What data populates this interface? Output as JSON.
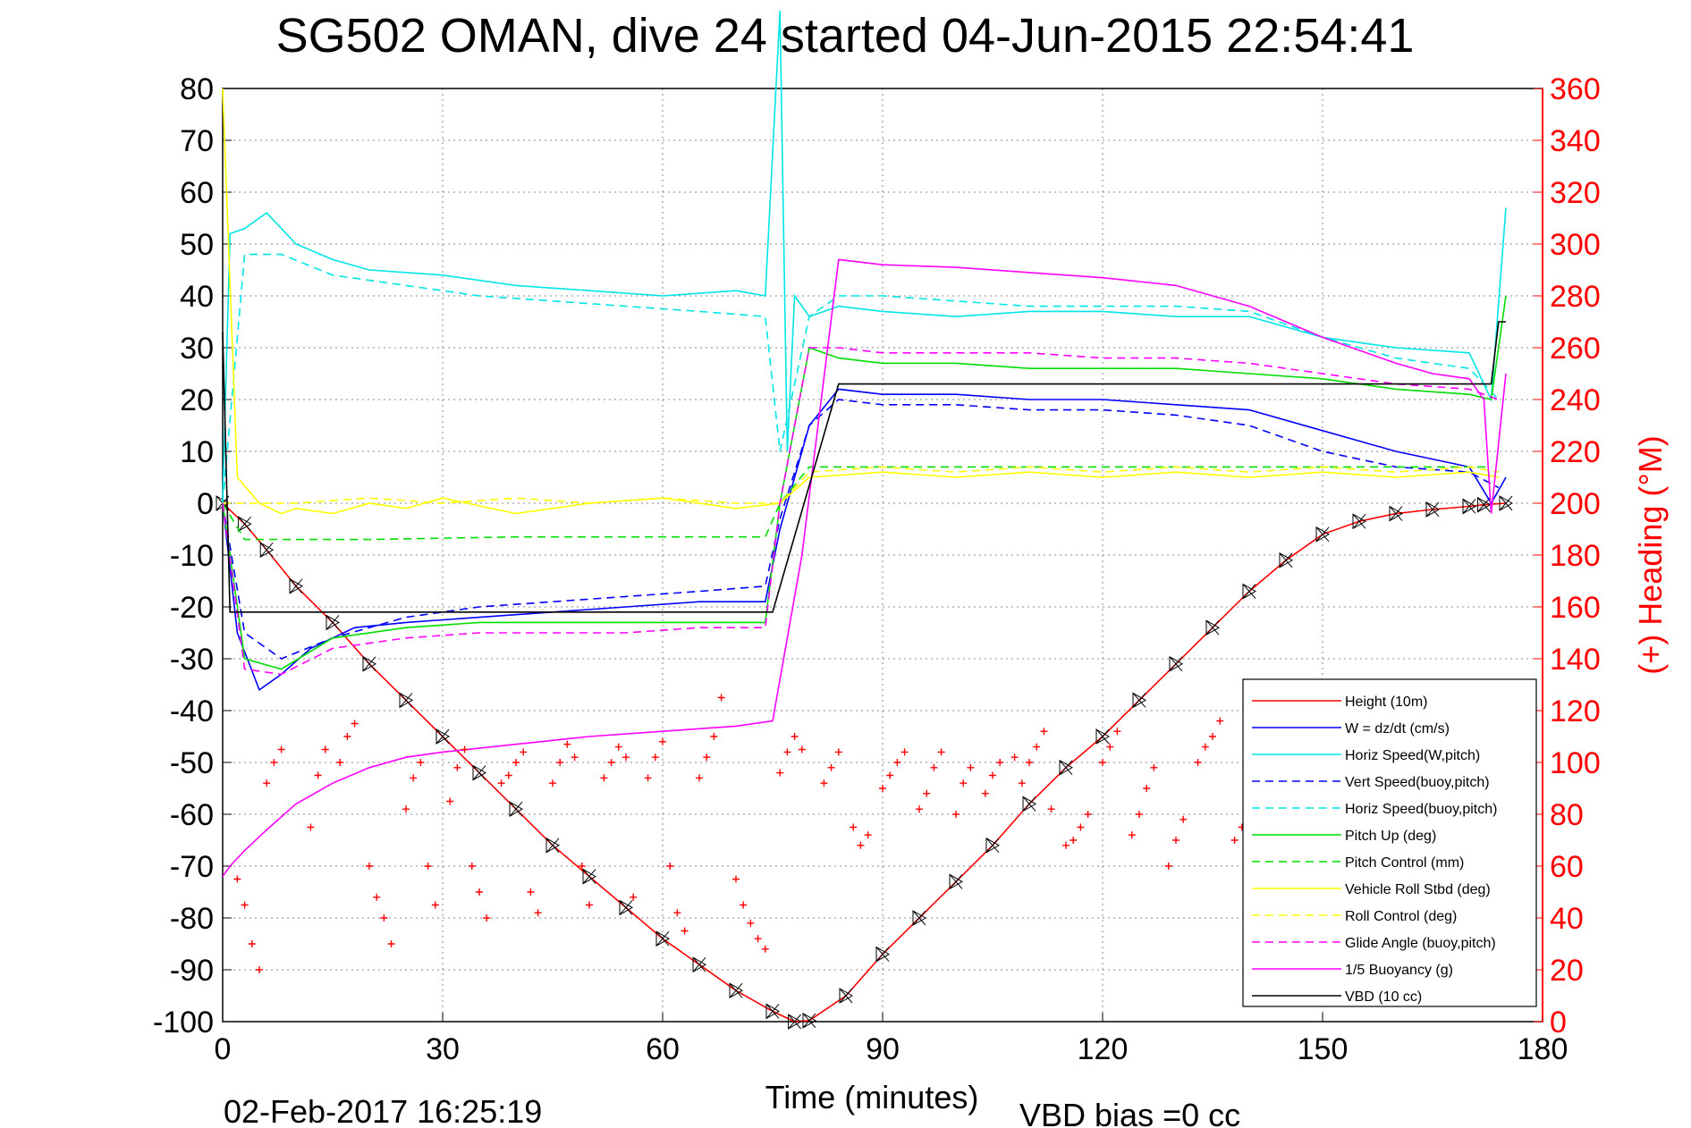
{
  "chart_data": {
    "type": "line",
    "title": "SG502 OMAN, dive 24 started 04-Jun-2015 22:54:41",
    "xlabel": "Time (minutes)",
    "ylabel": "",
    "y2label": "(+) Heading (°M)",
    "footer_left": "02-Feb-2017 16:25:19",
    "footer_right": "VBD bias =0 cc",
    "xlim": [
      0,
      180
    ],
    "ylim": [
      -100,
      80
    ],
    "y2lim": [
      0,
      360
    ],
    "xticks": [
      0,
      30,
      60,
      90,
      120,
      150,
      180
    ],
    "yticks": [
      -100,
      -90,
      -80,
      -70,
      -60,
      -50,
      -40,
      -30,
      -20,
      -10,
      0,
      10,
      20,
      30,
      40,
      50,
      60,
      70,
      80
    ],
    "y2ticks": [
      0,
      20,
      40,
      60,
      80,
      100,
      120,
      140,
      160,
      180,
      200,
      220,
      240,
      260,
      280,
      300,
      320,
      340,
      360
    ],
    "grid": true,
    "legend_position": "bottom-right",
    "series": [
      {
        "name": "Height (10m)",
        "color": "#ff0000",
        "dash": "solid",
        "x": [
          0,
          3,
          6,
          10,
          15,
          20,
          25,
          30,
          35,
          40,
          45,
          50,
          55,
          60,
          65,
          70,
          75,
          78,
          80,
          85,
          90,
          95,
          100,
          105,
          110,
          115,
          120,
          125,
          130,
          135,
          140,
          145,
          150,
          155,
          160,
          165,
          170,
          172,
          175
        ],
        "y": [
          0,
          -4,
          -9,
          -16,
          -23,
          -31,
          -38,
          -45,
          -52,
          -59,
          -66,
          -72,
          -78,
          -84,
          -89,
          -94,
          -98,
          -100,
          -99.8,
          -95,
          -87,
          -80,
          -73,
          -66,
          -58,
          -51,
          -45,
          -38,
          -31,
          -24,
          -17,
          -11,
          -6,
          -3.5,
          -2,
          -1.2,
          -0.6,
          -0.3,
          0
        ]
      },
      {
        "name": "W = dz/dt (cm/s)",
        "color": "#0000ff",
        "dash": "solid",
        "x": [
          0,
          2,
          5,
          8,
          12,
          18,
          25,
          35,
          45,
          55,
          65,
          74,
          76,
          80,
          84,
          90,
          100,
          110,
          120,
          130,
          140,
          150,
          160,
          170,
          173,
          175
        ],
        "y": [
          0,
          -25,
          -36,
          -33,
          -28,
          -24,
          -23,
          -22,
          -21,
          -20,
          -19,
          -19,
          -5,
          15,
          22,
          21,
          21,
          20,
          20,
          19,
          18,
          14,
          10,
          7,
          0,
          5
        ]
      },
      {
        "name": "Horiz Speed(W,pitch)",
        "color": "#00e5e5",
        "dash": "solid",
        "x": [
          0,
          1,
          3,
          6,
          10,
          15,
          20,
          30,
          40,
          50,
          60,
          70,
          74,
          76,
          77,
          78,
          80,
          84,
          90,
          100,
          110,
          120,
          130,
          140,
          150,
          160,
          170,
          173,
          175
        ],
        "y": [
          0,
          52,
          53,
          56,
          50,
          47,
          45,
          44,
          42,
          41,
          40,
          41,
          40,
          95,
          10,
          40,
          36,
          38,
          37,
          36,
          37,
          37,
          36,
          36,
          32,
          30,
          29,
          20,
          57
        ]
      },
      {
        "name": "Vert Speed(buoy,pitch)",
        "color": "#0000ff",
        "dash": "dashed",
        "x": [
          0,
          3,
          8,
          15,
          25,
          35,
          45,
          55,
          65,
          74,
          76,
          80,
          84,
          90,
          100,
          110,
          120,
          130,
          140,
          150,
          160,
          170,
          174
        ],
        "y": [
          0,
          -25,
          -30,
          -26,
          -22,
          -20,
          -19,
          -18,
          -17,
          -16,
          -3,
          15,
          20,
          19,
          19,
          18,
          18,
          17,
          15,
          10,
          7,
          6,
          3
        ]
      },
      {
        "name": "Horiz Speed(buoy,pitch)",
        "color": "#00e5e5",
        "dash": "dashed",
        "x": [
          0,
          3,
          8,
          15,
          25,
          35,
          45,
          55,
          65,
          74,
          76,
          80,
          84,
          90,
          100,
          110,
          120,
          130,
          140,
          150,
          160,
          170,
          174
        ],
        "y": [
          0,
          48,
          48,
          44,
          42,
          40,
          39,
          38,
          37,
          36,
          10,
          36,
          40,
          40,
          39,
          38,
          38,
          38,
          37,
          32,
          28,
          26,
          20
        ]
      },
      {
        "name": "Pitch Up (deg)",
        "color": "#00dd00",
        "dash": "solid",
        "x": [
          0,
          3,
          8,
          15,
          25,
          35,
          45,
          55,
          65,
          74,
          76,
          80,
          84,
          90,
          100,
          110,
          120,
          130,
          140,
          150,
          160,
          170,
          173,
          175
        ],
        "y": [
          0,
          -30,
          -32,
          -26,
          -24,
          -23,
          -23,
          -23,
          -23,
          -23,
          0,
          30,
          28,
          27,
          27,
          26,
          26,
          26,
          25,
          24,
          22,
          21,
          20,
          40
        ]
      },
      {
        "name": "Pitch Control (mm)",
        "color": "#00dd00",
        "dash": "dashed",
        "x": [
          0,
          3,
          20,
          40,
          60,
          74,
          76,
          80,
          100,
          120,
          140,
          160,
          173
        ],
        "y": [
          0,
          -7,
          -7,
          -6.5,
          -6.5,
          -6.5,
          0,
          7,
          7,
          7,
          7,
          7,
          7
        ]
      },
      {
        "name": "Vehicle Roll Stbd (deg)",
        "color": "#ffff00",
        "dash": "solid",
        "x": [
          0,
          2,
          5,
          8,
          10,
          15,
          20,
          25,
          30,
          40,
          50,
          60,
          70,
          76,
          80,
          90,
          100,
          110,
          120,
          130,
          140,
          150,
          160,
          170,
          174
        ],
        "y": [
          80,
          5,
          0,
          -2,
          -1,
          -2,
          0,
          -1,
          1,
          -2,
          0,
          1,
          -1,
          0,
          5,
          6,
          5,
          6,
          5,
          6,
          5,
          6,
          5,
          6,
          5
        ]
      },
      {
        "name": "Roll Control (deg)",
        "color": "#ffff00",
        "dash": "dashed",
        "x": [
          0,
          5,
          10,
          20,
          30,
          40,
          50,
          60,
          70,
          76,
          80,
          90,
          100,
          110,
          120,
          130,
          140,
          150,
          160,
          170,
          174
        ],
        "y": [
          0,
          0,
          0,
          1,
          0,
          1,
          0,
          1,
          0,
          0,
          6,
          7,
          6,
          7,
          6,
          7,
          6,
          7,
          6,
          7,
          6
        ]
      },
      {
        "name": "Glide Angle (buoy,pitch)",
        "color": "#ff00ff",
        "dash": "dashed",
        "x": [
          0,
          3,
          8,
          15,
          25,
          35,
          45,
          55,
          65,
          74,
          76,
          80,
          84,
          90,
          100,
          110,
          120,
          130,
          140,
          150,
          160,
          170,
          174
        ],
        "y": [
          0,
          -32,
          -33,
          -28,
          -26,
          -25,
          -25,
          -25,
          -24,
          -24,
          0,
          30,
          30,
          29,
          29,
          29,
          28,
          28,
          27,
          25,
          23,
          22,
          20
        ]
      },
      {
        "name": "1/5 Buoyancy (g)",
        "color": "#ff00ff",
        "dash": "solid",
        "x": [
          0,
          1,
          3,
          6,
          10,
          15,
          20,
          25,
          30,
          40,
          50,
          60,
          70,
          75,
          79,
          84,
          90,
          100,
          110,
          120,
          130,
          140,
          150,
          160,
          165,
          170,
          172,
          173,
          175
        ],
        "y": [
          -72,
          -70,
          -67,
          -63,
          -58,
          -54,
          -51,
          -49,
          -48,
          -46.5,
          -45,
          -44,
          -43,
          -42,
          -10,
          47,
          46,
          45.5,
          44.5,
          43.5,
          42,
          38,
          32,
          27,
          25,
          24,
          20,
          -2,
          25
        ]
      },
      {
        "name": "VBD (10 cc)",
        "color": "#000000",
        "dash": "solid",
        "x": [
          0,
          1,
          1.5,
          75,
          84,
          173,
          174,
          175
        ],
        "y": [
          33,
          -21,
          -21,
          -21,
          23,
          23,
          35,
          35
        ]
      }
    ],
    "heading": {
      "name": "(+) Heading (°M)",
      "color": "#ff0000",
      "marker": "+",
      "axis": "right",
      "x": [
        2,
        3,
        4,
        5,
        6,
        7,
        8,
        12,
        13,
        14,
        16,
        17,
        18,
        20,
        21,
        22,
        23,
        25,
        26,
        27,
        28,
        29,
        31,
        32,
        33,
        34,
        35,
        36,
        38,
        39,
        40,
        41,
        42,
        43,
        45,
        46,
        47,
        48,
        49,
        50,
        52,
        53,
        54,
        55,
        56,
        58,
        59,
        60,
        61,
        62,
        63,
        65,
        66,
        67,
        68,
        70,
        71,
        72,
        73,
        74,
        76,
        77,
        78,
        79,
        82,
        83,
        84,
        86,
        87,
        88,
        90,
        91,
        92,
        93,
        95,
        96,
        97,
        98,
        100,
        101,
        102,
        104,
        105,
        106,
        108,
        109,
        110,
        111,
        112,
        113,
        115,
        116,
        117,
        118,
        120,
        121,
        122,
        124,
        125,
        126,
        127,
        129,
        130,
        131,
        133,
        134,
        135,
        136,
        138,
        139,
        140,
        141,
        143,
        144,
        145,
        146
      ],
      "y": [
        55,
        45,
        30,
        20,
        92,
        100,
        105,
        75,
        95,
        105,
        100,
        110,
        115,
        60,
        48,
        40,
        30,
        82,
        94,
        100,
        60,
        45,
        85,
        98,
        105,
        60,
        50,
        40,
        92,
        95,
        100,
        104,
        50,
        42,
        92,
        100,
        107,
        102,
        60,
        45,
        94,
        100,
        106,
        102,
        48,
        94,
        102,
        108,
        60,
        42,
        35,
        94,
        102,
        110,
        125,
        55,
        45,
        38,
        32,
        28,
        96,
        104,
        110,
        105,
        92,
        98,
        104,
        75,
        68,
        72,
        90,
        95,
        100,
        104,
        82,
        88,
        98,
        104,
        80,
        92,
        98,
        88,
        95,
        100,
        102,
        92,
        100,
        106,
        112,
        82,
        68,
        70,
        75,
        80,
        100,
        106,
        112,
        72,
        80,
        90,
        98,
        60,
        70,
        78,
        100,
        106,
        110,
        116,
        70,
        75,
        82,
        88,
        96,
        100,
        108,
        112
      ]
    }
  }
}
